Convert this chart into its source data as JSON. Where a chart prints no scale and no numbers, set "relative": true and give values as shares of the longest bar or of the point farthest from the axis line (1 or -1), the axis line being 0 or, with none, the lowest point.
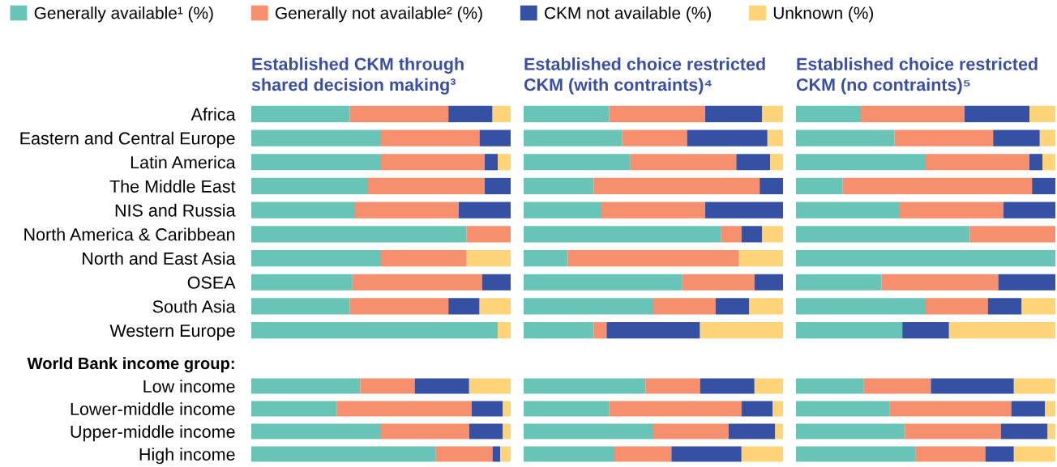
{
  "chart_data": [
    {
      "type": "bar",
      "orientation": "horizontal",
      "stacked": true,
      "relative": true,
      "legend": "top",
      "tick_labels": "y",
      "title": "Established CKM through\nshared decision making³",
      "categories": [
        "Africa",
        "Eastern and Central Europe",
        "Latin America",
        "The Middle East",
        "NIS and Russia",
        "North America & Caribbean",
        "North and East Asia",
        "OSEA",
        "South Asia",
        "Western Europe"
      ],
      "series": [
        {
          "name": "Generally available¹ (%)",
          "color": "#68c4b6",
          "values": [
            0.38,
            0.5,
            0.5,
            0.45,
            0.4,
            0.83,
            0.5,
            0.39,
            0.38,
            0.95
          ]
        },
        {
          "name": "Generally not available² (%)",
          "color": "#f58f6d",
          "values": [
            0.38,
            0.38,
            0.4,
            0.45,
            0.4,
            0.17,
            0.33,
            0.5,
            0.38,
            0
          ]
        },
        {
          "name": "CKM not available (%)",
          "color": "#3650a3",
          "values": [
            0.17,
            0.12,
            0.05,
            0.1,
            0.2,
            0,
            0,
            0.11,
            0.12,
            0
          ]
        },
        {
          "name": "Unknown (%)",
          "color": "#ffd478",
          "values": [
            0.07,
            0,
            0.05,
            0,
            0,
            0,
            0.17,
            0,
            0.12,
            0.05
          ]
        }
      ]
    },
    {
      "type": "bar",
      "orientation": "horizontal",
      "stacked": true,
      "relative": true,
      "tick_labels": false,
      "title": "Established choice restricted\nCKM (with contraints)⁴",
      "categories": [
        null,
        null,
        null,
        null,
        null,
        null,
        null,
        null,
        null,
        null
      ],
      "series": [
        {
          "color": "#68c4b6",
          "values": [
            0.33,
            0.38,
            0.41,
            0.27,
            0.3,
            0.76,
            0.17,
            0.61,
            0.5,
            0.27
          ]
        },
        {
          "color": "#f58f6d",
          "values": [
            0.37,
            0.25,
            0.41,
            0.64,
            0.4,
            0.08,
            0.66,
            0.28,
            0.24,
            0.05
          ]
        },
        {
          "color": "#3650a3",
          "values": [
            0.22,
            0.31,
            0.13,
            0.09,
            0.3,
            0.08,
            0,
            0.11,
            0.13,
            0.36
          ]
        },
        {
          "color": "#ffd478",
          "values": [
            0.08,
            0.06,
            0.05,
            0,
            0,
            0.08,
            0.17,
            0,
            0.13,
            0.32
          ]
        }
      ]
    },
    {
      "type": "bar",
      "orientation": "horizontal",
      "stacked": true,
      "relative": true,
      "tick_labels": false,
      "title": "Established choice restricted\nCKM (no contraints)⁵",
      "categories": [
        null,
        null,
        null,
        null,
        null,
        null,
        null,
        null,
        null,
        null
      ],
      "series": [
        {
          "color": "#68c4b6",
          "values": [
            0.25,
            0.38,
            0.5,
            0.18,
            0.4,
            0.67,
            1.0,
            0.33,
            0.5,
            0.41
          ]
        },
        {
          "color": "#f58f6d",
          "values": [
            0.4,
            0.38,
            0.4,
            0.73,
            0.4,
            0.33,
            0,
            0.45,
            0.24,
            0
          ]
        },
        {
          "color": "#3650a3",
          "values": [
            0.25,
            0.18,
            0.05,
            0.09,
            0.2,
            0,
            0,
            0.22,
            0.13,
            0.18
          ]
        },
        {
          "color": "#ffd478",
          "values": [
            0.1,
            0.06,
            0.05,
            0,
            0,
            0,
            0,
            0,
            0.13,
            0.41
          ]
        }
      ]
    },
    {
      "type": "bar",
      "orientation": "horizontal",
      "stacked": true,
      "relative": true,
      "tick_labels": "y",
      "title": "World Bank income group:",
      "categories": [
        "Low income",
        "Lower-middle income",
        "Upper-middle income",
        "High income"
      ],
      "series": [
        {
          "color": "#68c4b6",
          "values": [
            0.42,
            0.33,
            0.5,
            0.71
          ]
        },
        {
          "color": "#f58f6d",
          "values": [
            0.21,
            0.52,
            0.34,
            0.22
          ]
        },
        {
          "color": "#3650a3",
          "values": [
            0.21,
            0.12,
            0.13,
            0.03
          ]
        },
        {
          "color": "#ffd478",
          "values": [
            0.16,
            0.03,
            0.03,
            0.04
          ]
        }
      ]
    },
    {
      "type": "bar",
      "orientation": "horizontal",
      "stacked": true,
      "relative": true,
      "tick_labels": false,
      "categories": [
        null,
        null,
        null,
        null
      ],
      "series": [
        {
          "color": "#68c4b6",
          "values": [
            0.47,
            0.33,
            0.5,
            0.35
          ]
        },
        {
          "color": "#f58f6d",
          "values": [
            0.21,
            0.51,
            0.29,
            0.22
          ]
        },
        {
          "color": "#3650a3",
          "values": [
            0.21,
            0.12,
            0.18,
            0.27
          ]
        },
        {
          "color": "#ffd478",
          "values": [
            0.11,
            0.04,
            0.03,
            0.16
          ]
        }
      ]
    },
    {
      "type": "bar",
      "orientation": "horizontal",
      "stacked": true,
      "relative": true,
      "tick_labels": false,
      "categories": [
        null,
        null,
        null,
        null
      ],
      "series": [
        {
          "color": "#68c4b6",
          "values": [
            0.26,
            0.36,
            0.42,
            0.46
          ]
        },
        {
          "color": "#f58f6d",
          "values": [
            0.26,
            0.47,
            0.37,
            0.27
          ]
        },
        {
          "color": "#3650a3",
          "values": [
            0.32,
            0.13,
            0.18,
            0.11
          ]
        },
        {
          "color": "#ffd478",
          "values": [
            0.16,
            0.04,
            0.03,
            0.16
          ]
        }
      ]
    }
  ]
}
